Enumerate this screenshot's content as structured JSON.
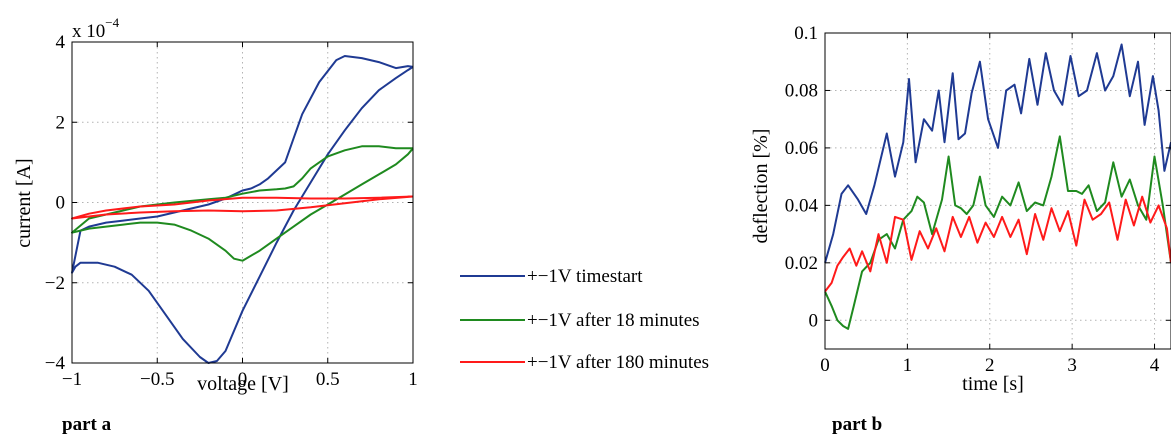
{
  "chart_data": [
    {
      "type": "line",
      "xlabel": "voltage [V]",
      "ylabel": "current [A]",
      "exponent_label": "x 10",
      "exponent_power": "−4",
      "caption": "part a",
      "xlim": [
        -1,
        1
      ],
      "ylim": [
        -4,
        4
      ],
      "y_scale_note": "values in units of 1e-4 A",
      "grid": true,
      "xticks": [
        -1,
        -0.5,
        0,
        0.5,
        1
      ],
      "xtick_labels": [
        "−1",
        "−0.5",
        "0",
        "0.5",
        "1"
      ],
      "yticks": [
        4,
        2,
        0,
        -2,
        -4
      ],
      "ytick_labels": [
        "4",
        "2",
        "0",
        "−2",
        "−4"
      ],
      "series": [
        {
          "name": "+−1V timestart",
          "color": "#1f3a93",
          "x": [
            1.0,
            0.97,
            0.9,
            0.8,
            0.7,
            0.6,
            0.55,
            0.45,
            0.35,
            0.3,
            0.25,
            0.15,
            0.1,
            0.05,
            0.0,
            -0.05,
            -0.1,
            -0.2,
            -0.3,
            -0.4,
            -0.5,
            -0.6,
            -0.7,
            -0.8,
            -0.9,
            -0.95,
            -1.0,
            -0.98,
            -0.95,
            -0.9,
            -0.85,
            -0.75,
            -0.65,
            -0.55,
            -0.45,
            -0.35,
            -0.25,
            -0.2,
            -0.15,
            -0.1,
            -0.05,
            0.0,
            0.1,
            0.2,
            0.3,
            0.4,
            0.5,
            0.6,
            0.7,
            0.8,
            0.9,
            0.97,
            1.0
          ],
          "y": [
            3.38,
            3.4,
            3.35,
            3.5,
            3.6,
            3.65,
            3.55,
            3.0,
            2.2,
            1.6,
            1.0,
            0.6,
            0.45,
            0.35,
            0.3,
            0.2,
            0.1,
            -0.05,
            -0.15,
            -0.25,
            -0.35,
            -0.4,
            -0.45,
            -0.5,
            -0.6,
            -0.7,
            -1.75,
            -1.6,
            -1.5,
            -1.5,
            -1.5,
            -1.6,
            -1.8,
            -2.2,
            -2.8,
            -3.4,
            -3.85,
            -4.0,
            -3.95,
            -3.7,
            -3.2,
            -2.7,
            -1.85,
            -1.0,
            -0.2,
            0.5,
            1.2,
            1.8,
            2.35,
            2.8,
            3.1,
            3.3,
            3.38
          ]
        },
        {
          "name": "+−1V after 18 minutes",
          "color": "#1f8a1f",
          "x": [
            1.0,
            0.9,
            0.8,
            0.7,
            0.6,
            0.5,
            0.45,
            0.4,
            0.35,
            0.3,
            0.25,
            0.2,
            0.1,
            0.0,
            -0.1,
            -0.2,
            -0.3,
            -0.4,
            -0.5,
            -0.6,
            -0.7,
            -0.8,
            -0.9,
            -1.0,
            -0.9,
            -0.8,
            -0.7,
            -0.6,
            -0.5,
            -0.4,
            -0.3,
            -0.2,
            -0.1,
            -0.05,
            0.0,
            0.1,
            0.2,
            0.3,
            0.4,
            0.5,
            0.6,
            0.7,
            0.8,
            0.9,
            0.97,
            1.0
          ],
          "y": [
            1.35,
            1.35,
            1.4,
            1.4,
            1.3,
            1.15,
            1.0,
            0.85,
            0.6,
            0.4,
            0.35,
            0.33,
            0.3,
            0.22,
            0.12,
            0.08,
            0.04,
            0.0,
            -0.05,
            -0.1,
            -0.2,
            -0.3,
            -0.4,
            -0.75,
            -0.65,
            -0.6,
            -0.55,
            -0.5,
            -0.5,
            -0.55,
            -0.7,
            -0.9,
            -1.2,
            -1.4,
            -1.45,
            -1.2,
            -0.9,
            -0.6,
            -0.3,
            -0.05,
            0.2,
            0.45,
            0.7,
            0.95,
            1.2,
            1.35
          ]
        },
        {
          "name": "+−1V after 180 minutes",
          "color": "#ff1a1a",
          "x": [
            1.0,
            0.8,
            0.6,
            0.4,
            0.2,
            0.1,
            0.0,
            -0.2,
            -0.4,
            -0.6,
            -0.8,
            -0.9,
            -1.0,
            -0.9,
            -0.8,
            -0.6,
            -0.4,
            -0.2,
            0.0,
            0.2,
            0.4,
            0.6,
            0.8,
            1.0
          ],
          "y": [
            0.15,
            0.12,
            0.1,
            0.1,
            0.12,
            0.12,
            0.12,
            0.05,
            -0.05,
            -0.1,
            -0.2,
            -0.28,
            -0.4,
            -0.35,
            -0.3,
            -0.25,
            -0.22,
            -0.2,
            -0.22,
            -0.2,
            -0.12,
            -0.02,
            0.08,
            0.15
          ]
        }
      ]
    },
    {
      "type": "line",
      "xlabel": "time [s]",
      "ylabel": "deflection [%]",
      "caption": "part b",
      "xlim": [
        0,
        4.2
      ],
      "ylim": [
        -0.01,
        0.1
      ],
      "grid": true,
      "xticks": [
        0,
        1,
        2,
        3,
        4
      ],
      "xtick_labels": [
        "0",
        "1",
        "2",
        "3",
        "4"
      ],
      "yticks": [
        0.1,
        0.08,
        0.06,
        0.04,
        0.02,
        0
      ],
      "ytick_labels": [
        "0.1",
        "0.08",
        "0.06",
        "0.04",
        "0.02",
        "0"
      ],
      "series": [
        {
          "name": "+−1V timestart",
          "color": "#1f3a93",
          "x": [
            0.0,
            0.1,
            0.2,
            0.28,
            0.4,
            0.5,
            0.6,
            0.75,
            0.85,
            0.95,
            1.02,
            1.1,
            1.2,
            1.3,
            1.38,
            1.45,
            1.55,
            1.62,
            1.7,
            1.78,
            1.88,
            1.98,
            2.1,
            2.2,
            2.3,
            2.38,
            2.48,
            2.58,
            2.68,
            2.78,
            2.88,
            2.98,
            3.08,
            3.18,
            3.3,
            3.4,
            3.5,
            3.6,
            3.7,
            3.8,
            3.88,
            3.98,
            4.05,
            4.12,
            4.2
          ],
          "y": [
            0.02,
            0.03,
            0.044,
            0.047,
            0.042,
            0.037,
            0.047,
            0.065,
            0.05,
            0.062,
            0.084,
            0.055,
            0.07,
            0.066,
            0.08,
            0.062,
            0.086,
            0.063,
            0.065,
            0.079,
            0.09,
            0.07,
            0.06,
            0.08,
            0.082,
            0.072,
            0.091,
            0.075,
            0.093,
            0.08,
            0.075,
            0.092,
            0.078,
            0.08,
            0.093,
            0.08,
            0.085,
            0.096,
            0.078,
            0.09,
            0.068,
            0.085,
            0.073,
            0.052,
            0.062
          ]
        },
        {
          "name": "+−1V after 18 minutes",
          "color": "#1f8a1f",
          "x": [
            0.0,
            0.08,
            0.15,
            0.22,
            0.28,
            0.35,
            0.45,
            0.55,
            0.65,
            0.75,
            0.85,
            0.95,
            1.05,
            1.12,
            1.2,
            1.3,
            1.42,
            1.5,
            1.58,
            1.65,
            1.72,
            1.8,
            1.88,
            1.95,
            2.05,
            2.15,
            2.25,
            2.35,
            2.45,
            2.55,
            2.65,
            2.75,
            2.85,
            2.95,
            3.05,
            3.12,
            3.2,
            3.3,
            3.4,
            3.5,
            3.6,
            3.7,
            3.8,
            3.9,
            4.0,
            4.1,
            4.2
          ],
          "y": [
            0.01,
            0.005,
            0.0,
            -0.002,
            -0.003,
            0.005,
            0.017,
            0.02,
            0.028,
            0.03,
            0.025,
            0.035,
            0.038,
            0.043,
            0.041,
            0.03,
            0.042,
            0.057,
            0.04,
            0.039,
            0.037,
            0.04,
            0.05,
            0.04,
            0.036,
            0.043,
            0.04,
            0.048,
            0.038,
            0.041,
            0.04,
            0.05,
            0.064,
            0.045,
            0.045,
            0.044,
            0.047,
            0.038,
            0.041,
            0.055,
            0.043,
            0.049,
            0.04,
            0.035,
            0.057,
            0.04,
            0.02
          ]
        },
        {
          "name": "+−1V after 180 minutes",
          "color": "#ff1a1a",
          "x": [
            0.0,
            0.08,
            0.15,
            0.22,
            0.3,
            0.38,
            0.45,
            0.55,
            0.65,
            0.75,
            0.85,
            0.95,
            1.05,
            1.15,
            1.25,
            1.35,
            1.45,
            1.55,
            1.65,
            1.75,
            1.85,
            1.95,
            2.05,
            2.15,
            2.25,
            2.35,
            2.45,
            2.55,
            2.65,
            2.75,
            2.85,
            2.95,
            3.05,
            3.15,
            3.25,
            3.35,
            3.45,
            3.55,
            3.65,
            3.75,
            3.85,
            3.95,
            4.05,
            4.15,
            4.2
          ],
          "y": [
            0.01,
            0.013,
            0.019,
            0.022,
            0.025,
            0.019,
            0.024,
            0.017,
            0.03,
            0.02,
            0.036,
            0.035,
            0.021,
            0.031,
            0.025,
            0.032,
            0.024,
            0.036,
            0.029,
            0.036,
            0.027,
            0.034,
            0.029,
            0.036,
            0.029,
            0.035,
            0.023,
            0.037,
            0.028,
            0.039,
            0.031,
            0.038,
            0.026,
            0.042,
            0.035,
            0.037,
            0.041,
            0.028,
            0.042,
            0.033,
            0.043,
            0.034,
            0.04,
            0.032,
            0.02
          ]
        }
      ]
    }
  ],
  "legend": {
    "placement": "center between panels",
    "entries": [
      {
        "label": "+−1V timestart",
        "color": "#1f3a93"
      },
      {
        "label": "+−1V after 18 minutes",
        "color": "#1f8a1f"
      },
      {
        "label": "+−1V after 180 minutes",
        "color": "#ff1a1a"
      }
    ]
  }
}
